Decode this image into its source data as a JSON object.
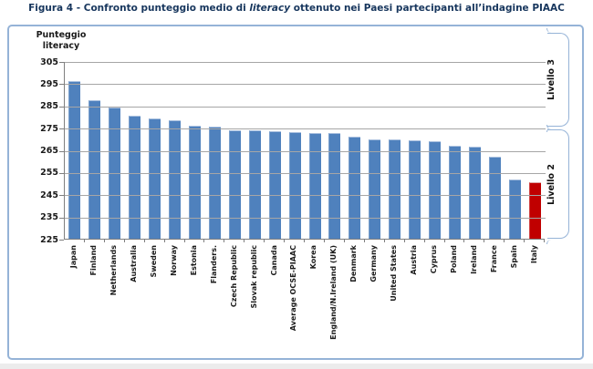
{
  "title": {
    "prefix": "Figura 4 - Confronto punteggio medio di ",
    "italic": "literacy",
    "suffix": " ottenuto nei Paesi partecipanti all’indagine PIAAC"
  },
  "y_axis": {
    "title_line1": "Punteggio",
    "title_line2": "literacy",
    "min": 225,
    "max": 305,
    "tick_step": 10,
    "ticks": [
      305,
      295,
      285,
      275,
      265,
      255,
      245,
      235,
      225
    ]
  },
  "levels": [
    {
      "label": "Livello 3",
      "value_from": 276,
      "value_to": 305
    },
    {
      "label": "Livello 2",
      "value_from": 226,
      "value_to": 275
    }
  ],
  "colors": {
    "bar": "#4F81BD",
    "highlight_bar": "#C00000",
    "frame_border": "#95B3D7",
    "bracket": "#95B3D7",
    "gridline": "#A6A6A6",
    "axis": "#7F7F7F",
    "title_text": "#17365D"
  },
  "chart_data": {
    "type": "bar",
    "title": "Figura 4 - Confronto punteggio medio di literacy ottenuto nei Paesi partecipanti all’indagine PIAAC",
    "ylabel": "Punteggio literacy",
    "xlabel": "",
    "ylim": [
      225,
      305
    ],
    "grid": true,
    "legend": "none",
    "categories": [
      "Japan",
      "Finland",
      "Netherlands",
      "Australia",
      "Sweden",
      "Norway",
      "Estonia",
      "Flanders.",
      "Czech Republic",
      "Slovak republic",
      "Canada",
      "Average OCSE-PIAAC",
      "Korea",
      "England/N.Ireland (UK)",
      "Denmark",
      "Germany",
      "United States",
      "Austria",
      "Cyprus",
      "Poland",
      "Ireland",
      "France",
      "Spain",
      "Italy"
    ],
    "values": [
      296.2,
      287.5,
      284.0,
      280.4,
      279.2,
      278.4,
      275.9,
      275.5,
      274.0,
      273.8,
      273.5,
      273.0,
      272.6,
      272.5,
      270.8,
      269.8,
      269.8,
      269.5,
      269.1,
      266.9,
      266.5,
      262.1,
      251.8,
      250.5
    ],
    "highlight_category": "Italy",
    "annotations": [
      "Livello 3",
      "Livello 2"
    ]
  }
}
